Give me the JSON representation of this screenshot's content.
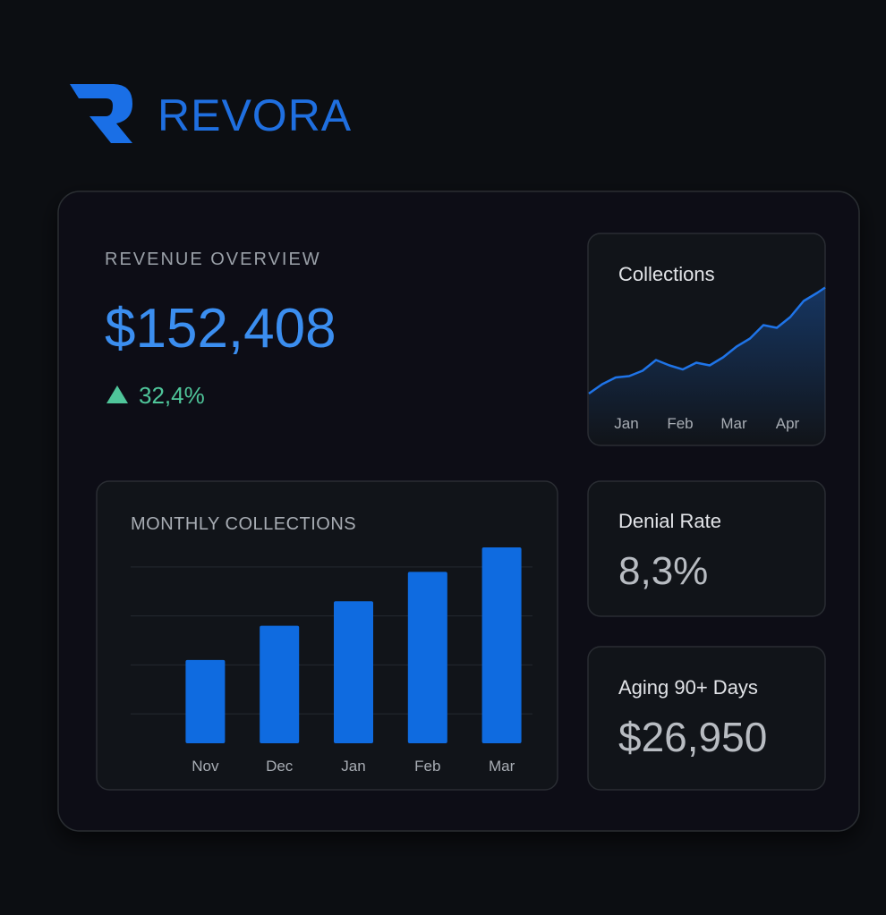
{
  "brand": "REVORA",
  "revenue": {
    "label": "REVENUE OVERVIEW",
    "amount": "$152,408",
    "change": "32,4%"
  },
  "denial": {
    "label": "Denial Rate",
    "value": "8,3%"
  },
  "aging": {
    "label": "Aging 90+ Days",
    "value": "$26,950"
  },
  "chart_data": [
    {
      "type": "line",
      "title": "Collections",
      "color": "#1f74e8",
      "x": [
        0.3,
        0.55,
        0.8,
        1.05,
        1.3,
        1.55,
        1.8,
        2.05,
        2.3,
        2.55,
        2.8,
        3.05,
        3.3,
        3.55,
        3.8,
        4.05,
        4.3,
        4.55,
        4.7
      ],
      "values": [
        20,
        27,
        32,
        33,
        37,
        45,
        41,
        38,
        43,
        41,
        47,
        55,
        61,
        71,
        69,
        77,
        89,
        95,
        99
      ],
      "xlim": [
        0.3,
        4.7
      ],
      "xticks": [
        {
          "value": 1,
          "label": "Jan"
        },
        {
          "value": 2,
          "label": "Feb"
        },
        {
          "value": 3,
          "label": "Mar"
        },
        {
          "value": 4,
          "label": "Apr"
        }
      ],
      "ylim": [
        0,
        100
      ]
    },
    {
      "type": "bar",
      "title": "MONTHLY COLLECTIONS",
      "color": "#0f6be0",
      "categories": [
        "Nov",
        "Dec",
        "Jan",
        "Feb",
        "Mar"
      ],
      "values": [
        1.7,
        2.4,
        2.9,
        3.5,
        4.0
      ],
      "ylim": [
        0,
        4.2
      ],
      "yticks": [
        0.6,
        1.6,
        2.6,
        3.6
      ],
      "grid": true
    }
  ]
}
